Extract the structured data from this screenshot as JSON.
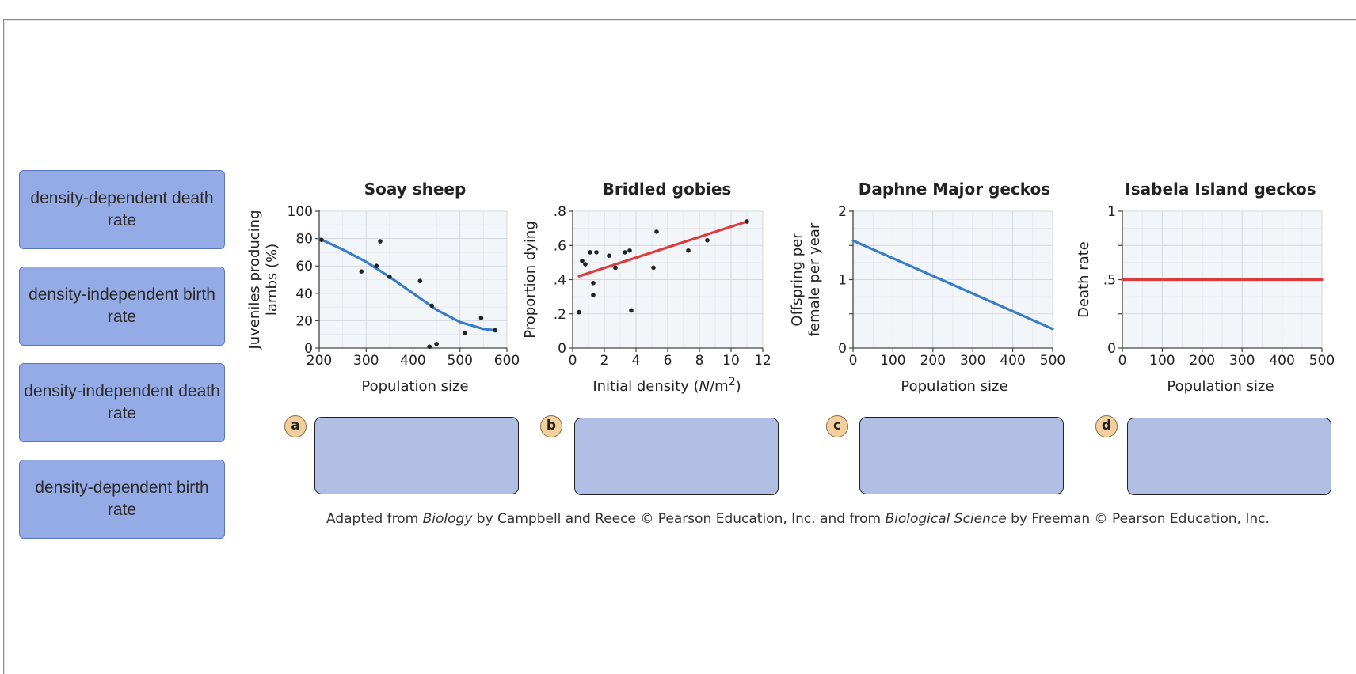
{
  "labels": [
    "density-dependent death rate",
    "density-independent birth rate",
    "density-independent death rate",
    "density-dependent birth rate"
  ],
  "badges": [
    "a",
    "b",
    "c",
    "d"
  ],
  "credit": {
    "p1": "Adapted from ",
    "i1": "Biology",
    "p2": " by Campbell and Reece © Pearson Education, Inc. and from ",
    "i2": "Biological Science",
    "p3": " by Freeman © Pearson Education, Inc."
  },
  "colors": {
    "blue_line": "#3a7cc6",
    "red_line": "#dd3c3c",
    "label_bg": "#94abe6",
    "drop_bg": "#b0bfe3"
  },
  "chart_data": [
    {
      "type": "scatter",
      "title": "Soay sheep",
      "xlabel": "Population size",
      "ylabel_lines": [
        "Juveniles producing",
        "lambs (%)"
      ],
      "xlim": [
        200,
        600
      ],
      "ylim": [
        0,
        100
      ],
      "xticks": [
        200,
        300,
        400,
        500,
        600
      ],
      "xtick_labels": [
        "200",
        "300",
        "400",
        "500",
        "600"
      ],
      "yticks": [
        0,
        20,
        40,
        60,
        80,
        100
      ],
      "ytick_labels": [
        "0",
        "20",
        "40",
        "60",
        "80",
        "100"
      ],
      "points": [
        [
          205,
          79
        ],
        [
          290,
          56
        ],
        [
          322,
          60
        ],
        [
          330,
          78
        ],
        [
          350,
          52
        ],
        [
          415,
          49
        ],
        [
          440,
          31
        ],
        [
          435,
          1
        ],
        [
          450,
          3
        ],
        [
          510,
          11
        ],
        [
          545,
          22
        ],
        [
          575,
          13
        ]
      ],
      "curve": [
        [
          200,
          80
        ],
        [
          250,
          72
        ],
        [
          300,
          63
        ],
        [
          350,
          52
        ],
        [
          400,
          40
        ],
        [
          450,
          28
        ],
        [
          500,
          19
        ],
        [
          550,
          14
        ],
        [
          575,
          13
        ]
      ],
      "curve_color": "#3a7cc6"
    },
    {
      "type": "scatter",
      "title": "Bridled gobies",
      "xlabel": "Initial density (N/m2)",
      "xlabel_parts": {
        "pre": "Initial density (",
        "ital": "N",
        "mid": "/m",
        "sup": "2",
        "post": ")"
      },
      "ylabel_lines": [
        "Proportion dying"
      ],
      "xlim": [
        0,
        12
      ],
      "ylim": [
        0,
        0.8
      ],
      "xticks": [
        0,
        2,
        4,
        6,
        8,
        10,
        12
      ],
      "xtick_labels": [
        "0",
        "2",
        "4",
        "6",
        "8",
        "10",
        "12"
      ],
      "yticks": [
        0,
        0.2,
        0.4,
        0.6,
        0.8
      ],
      "ytick_labels": [
        "0",
        ".2",
        ".4",
        ".6",
        ".8"
      ],
      "points": [
        [
          0.4,
          0.21
        ],
        [
          0.6,
          0.51
        ],
        [
          0.8,
          0.49
        ],
        [
          1.1,
          0.56
        ],
        [
          1.3,
          0.31
        ],
        [
          1.3,
          0.38
        ],
        [
          1.5,
          0.56
        ],
        [
          2.3,
          0.54
        ],
        [
          2.7,
          0.47
        ],
        [
          3.3,
          0.56
        ],
        [
          3.6,
          0.57
        ],
        [
          3.7,
          0.22
        ],
        [
          5.1,
          0.47
        ],
        [
          5.3,
          0.68
        ],
        [
          7.3,
          0.57
        ],
        [
          8.5,
          0.63
        ],
        [
          11.0,
          0.74
        ]
      ],
      "line": [
        [
          0.4,
          0.42
        ],
        [
          11.0,
          0.74
        ]
      ],
      "line_color": "#dd3c3c"
    },
    {
      "type": "line",
      "title": "Daphne Major geckos",
      "xlabel": "Population size",
      "ylabel_lines": [
        "Offspring per",
        "female per year"
      ],
      "xlim": [
        0,
        500
      ],
      "ylim": [
        0,
        2
      ],
      "xticks": [
        0,
        100,
        200,
        300,
        400,
        500
      ],
      "xtick_labels": [
        "0",
        "100",
        "200",
        "300",
        "400",
        "500"
      ],
      "yticks": [
        0,
        0.5,
        1,
        1.5,
        2
      ],
      "ytick_labels": [
        "0",
        "",
        "1",
        "",
        "2"
      ],
      "line": [
        [
          0,
          1.57
        ],
        [
          500,
          0.28
        ]
      ],
      "line_color": "#3a7cc6"
    },
    {
      "type": "line",
      "title": "Isabela Island geckos",
      "xlabel": "Population size",
      "ylabel_lines": [
        "Death rate"
      ],
      "xlim": [
        0,
        500
      ],
      "ylim": [
        0,
        1
      ],
      "xticks": [
        0,
        100,
        200,
        300,
        400,
        500
      ],
      "xtick_labels": [
        "0",
        "100",
        "200",
        "300",
        "400",
        "500"
      ],
      "yticks": [
        0,
        0.25,
        0.5,
        0.75,
        1
      ],
      "ytick_labels": [
        "0",
        "",
        ".5",
        "",
        "1"
      ],
      "line": [
        [
          0,
          0.5
        ],
        [
          500,
          0.5
        ]
      ],
      "line_color": "#dd3c3c"
    }
  ]
}
